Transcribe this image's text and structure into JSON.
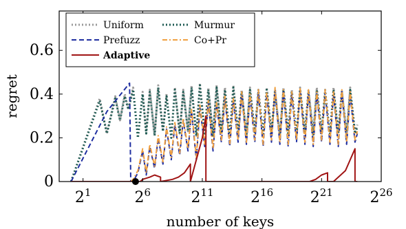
{
  "chart_data": {
    "type": "line",
    "xlabel": "number of keys",
    "ylabel": "regret",
    "x_scale": "log2",
    "xlim_exponent": [
      -1,
      26
    ],
    "ylim": [
      0,
      0.78
    ],
    "x_ticks": [
      {
        "base": "2",
        "exp": "1",
        "value_exponent": 1
      },
      {
        "base": "2",
        "exp": "6",
        "value_exponent": 6
      },
      {
        "base": "2",
        "exp": "11",
        "value_exponent": 11
      },
      {
        "base": "2",
        "exp": "16",
        "value_exponent": 16
      },
      {
        "base": "2",
        "exp": "21",
        "value_exponent": 21
      },
      {
        "base": "2",
        "exp": "26",
        "value_exponent": 26
      }
    ],
    "y_ticks": [
      "0",
      "0.2",
      "0.4",
      "0.6"
    ],
    "y_tick_values": [
      0,
      0.2,
      0.4,
      0.6
    ],
    "grid": false,
    "legend_position": "top-left",
    "marker": {
      "x_exponent": 5.4,
      "y": 0
    },
    "series": [
      {
        "name": "Uniform",
        "color": "#999999",
        "dash": "dotted",
        "x_exponents": [
          0,
          2.4,
          3.0,
          3.7,
          4.1,
          4.5,
          4.8,
          5.2,
          5.6,
          6.0,
          6.3,
          6.6,
          7.0,
          7.3,
          7.7,
          8.0,
          8.4,
          8.7,
          9.1,
          9.4,
          9.8,
          10.1,
          10.5,
          10.8,
          11.2,
          11.5,
          11.9,
          12.2,
          12.6,
          12.9,
          13.3,
          13.6,
          14.0,
          14.3,
          14.7,
          15.0,
          15.4,
          15.7,
          16.1,
          16.4,
          16.8,
          17.1,
          17.5,
          17.8,
          18.2,
          18.5,
          18.9,
          19.2,
          19.6,
          19.9,
          20.3,
          20.6,
          21.0,
          21.3,
          21.7,
          22.0,
          22.4,
          22.7,
          23.1,
          23.4,
          23.8,
          24.0
        ],
        "y": [
          0,
          0.38,
          0.22,
          0.39,
          0.28,
          0.4,
          0.33,
          0.43,
          0.2,
          0.41,
          0.22,
          0.42,
          0.21,
          0.44,
          0.23,
          0.4,
          0.2,
          0.43,
          0.22,
          0.42,
          0.23,
          0.44,
          0.21,
          0.45,
          0.22,
          0.43,
          0.21,
          0.44,
          0.22,
          0.43,
          0.2,
          0.44,
          0.22,
          0.42,
          0.21,
          0.43,
          0.22,
          0.42,
          0.21,
          0.43,
          0.22,
          0.42,
          0.2,
          0.43,
          0.22,
          0.42,
          0.21,
          0.43,
          0.22,
          0.42,
          0.21,
          0.43,
          0.22,
          0.42,
          0.21,
          0.43,
          0.22,
          0.42,
          0.21,
          0.43,
          0.22,
          0.26
        ]
      },
      {
        "name": "Murmur",
        "color": "#1e5b53",
        "dash": "dotted",
        "x_exponents": [
          0,
          2.4,
          3.0,
          3.7,
          4.1,
          4.5,
          4.8,
          5.2,
          5.6,
          6.0,
          6.3,
          6.6,
          7.0,
          7.3,
          7.7,
          8.0,
          8.4,
          8.7,
          9.1,
          9.4,
          9.8,
          10.1,
          10.5,
          10.8,
          11.2,
          11.5,
          11.9,
          12.2,
          12.6,
          12.9,
          13.3,
          13.6,
          14.0,
          14.3,
          14.7,
          15.0,
          15.4,
          15.7,
          16.1,
          16.4,
          16.8,
          17.1,
          17.5,
          17.8,
          18.2,
          18.5,
          18.9,
          19.2,
          19.6,
          19.9,
          20.3,
          20.6,
          21.0,
          21.3,
          21.7,
          22.0,
          22.4,
          22.7,
          23.1,
          23.4,
          23.8,
          24.0
        ],
        "y": [
          0,
          0.37,
          0.22,
          0.38,
          0.28,
          0.39,
          0.33,
          0.42,
          0.2,
          0.4,
          0.22,
          0.41,
          0.21,
          0.43,
          0.23,
          0.39,
          0.2,
          0.42,
          0.22,
          0.41,
          0.23,
          0.43,
          0.21,
          0.44,
          0.22,
          0.42,
          0.21,
          0.43,
          0.22,
          0.42,
          0.2,
          0.43,
          0.22,
          0.41,
          0.21,
          0.42,
          0.22,
          0.41,
          0.21,
          0.42,
          0.22,
          0.41,
          0.2,
          0.42,
          0.22,
          0.41,
          0.21,
          0.42,
          0.22,
          0.41,
          0.21,
          0.42,
          0.22,
          0.41,
          0.21,
          0.42,
          0.22,
          0.41,
          0.21,
          0.42,
          0.22,
          0.25
        ]
      },
      {
        "name": "Prefuzz",
        "color": "#1f2ea0",
        "dash": "dashed",
        "x_exponents": [
          0,
          3.0,
          4.9,
          5.0,
          5.2,
          5.6,
          6.0,
          6.3,
          6.6,
          7.0,
          7.3,
          7.7,
          8.0,
          8.4,
          8.7,
          9.1,
          9.4,
          9.8,
          10.1,
          10.5,
          10.8,
          11.2,
          11.5,
          11.9,
          12.2,
          12.6,
          12.9,
          13.3,
          13.6,
          14.0,
          14.3,
          14.7,
          15.0,
          15.4,
          15.7,
          16.1,
          16.4,
          16.8,
          17.1,
          17.5,
          17.8,
          18.2,
          18.5,
          18.9,
          19.2,
          19.6,
          19.9,
          20.3,
          20.6,
          21.0,
          21.3,
          21.7,
          22.0,
          22.4,
          22.7,
          23.1,
          23.4,
          23.8,
          24.0
        ],
        "y": [
          0,
          0.32,
          0.45,
          0.0,
          0.0,
          0.04,
          0.14,
          0.03,
          0.16,
          0.06,
          0.2,
          0.08,
          0.24,
          0.1,
          0.26,
          0.12,
          0.28,
          0.14,
          0.32,
          0.1,
          0.34,
          0.16,
          0.36,
          0.14,
          0.35,
          0.18,
          0.38,
          0.16,
          0.37,
          0.18,
          0.4,
          0.17,
          0.39,
          0.18,
          0.41,
          0.16,
          0.4,
          0.18,
          0.42,
          0.17,
          0.41,
          0.16,
          0.4,
          0.18,
          0.42,
          0.17,
          0.41,
          0.16,
          0.4,
          0.18,
          0.41,
          0.17,
          0.4,
          0.16,
          0.41,
          0.17,
          0.4,
          0.18,
          0.22
        ]
      },
      {
        "name": "Co+Pr",
        "color": "#f0a040",
        "dash": "dashdot",
        "x_exponents": [
          5.0,
          5.2,
          5.6,
          6.0,
          6.3,
          6.6,
          7.0,
          7.3,
          7.7,
          8.0,
          8.4,
          8.7,
          9.1,
          9.4,
          9.8,
          10.1,
          10.5,
          10.8,
          11.2,
          11.5,
          11.9,
          12.2,
          12.6,
          12.9,
          13.3,
          13.6,
          14.0,
          14.3,
          14.7,
          15.0,
          15.4,
          15.7,
          16.1,
          16.4,
          16.8,
          17.1,
          17.5,
          17.8,
          18.2,
          18.5,
          18.9,
          19.2,
          19.6,
          19.9,
          20.3,
          20.6,
          21.0,
          21.3,
          21.7,
          22.0,
          22.4,
          22.7,
          23.1,
          23.4,
          23.8,
          24.0
        ],
        "y": [
          0.0,
          0.01,
          0.05,
          0.15,
          0.04,
          0.17,
          0.07,
          0.21,
          0.09,
          0.25,
          0.11,
          0.27,
          0.13,
          0.29,
          0.15,
          0.33,
          0.11,
          0.35,
          0.17,
          0.37,
          0.15,
          0.36,
          0.19,
          0.39,
          0.17,
          0.38,
          0.19,
          0.41,
          0.18,
          0.4,
          0.19,
          0.42,
          0.17,
          0.41,
          0.19,
          0.43,
          0.18,
          0.42,
          0.17,
          0.41,
          0.19,
          0.43,
          0.18,
          0.42,
          0.17,
          0.41,
          0.19,
          0.42,
          0.18,
          0.41,
          0.17,
          0.42,
          0.18,
          0.41,
          0.19,
          0.23
        ]
      },
      {
        "name": "Adaptive",
        "color": "#a01414",
        "dash": "solid",
        "x_exponents": [
          0,
          5.0,
          5.8,
          6.0,
          6.6,
          7.0,
          7.5,
          7.5,
          8.5,
          9.0,
          9.5,
          10.0,
          10.0,
          11.0,
          11.3,
          11.3,
          12.0,
          13.0,
          14.0,
          15.0,
          16.0,
          17.0,
          18.0,
          19.0,
          20.0,
          20.5,
          21.0,
          21.5,
          21.5,
          22.0,
          23.0,
          23.8,
          23.8,
          24.0
        ],
        "y": [
          0,
          0,
          0,
          0.01,
          0.02,
          0.03,
          0.02,
          0.0,
          0.01,
          0.02,
          0.04,
          0.08,
          0.0,
          0.2,
          0.3,
          0.0,
          0.0,
          0.0,
          0.0,
          0.0,
          0.0,
          0.0,
          0.0,
          0.0,
          0.0,
          0.01,
          0.03,
          0.04,
          0.0,
          0.0,
          0.05,
          0.15,
          0.0,
          0.0
        ]
      }
    ]
  }
}
